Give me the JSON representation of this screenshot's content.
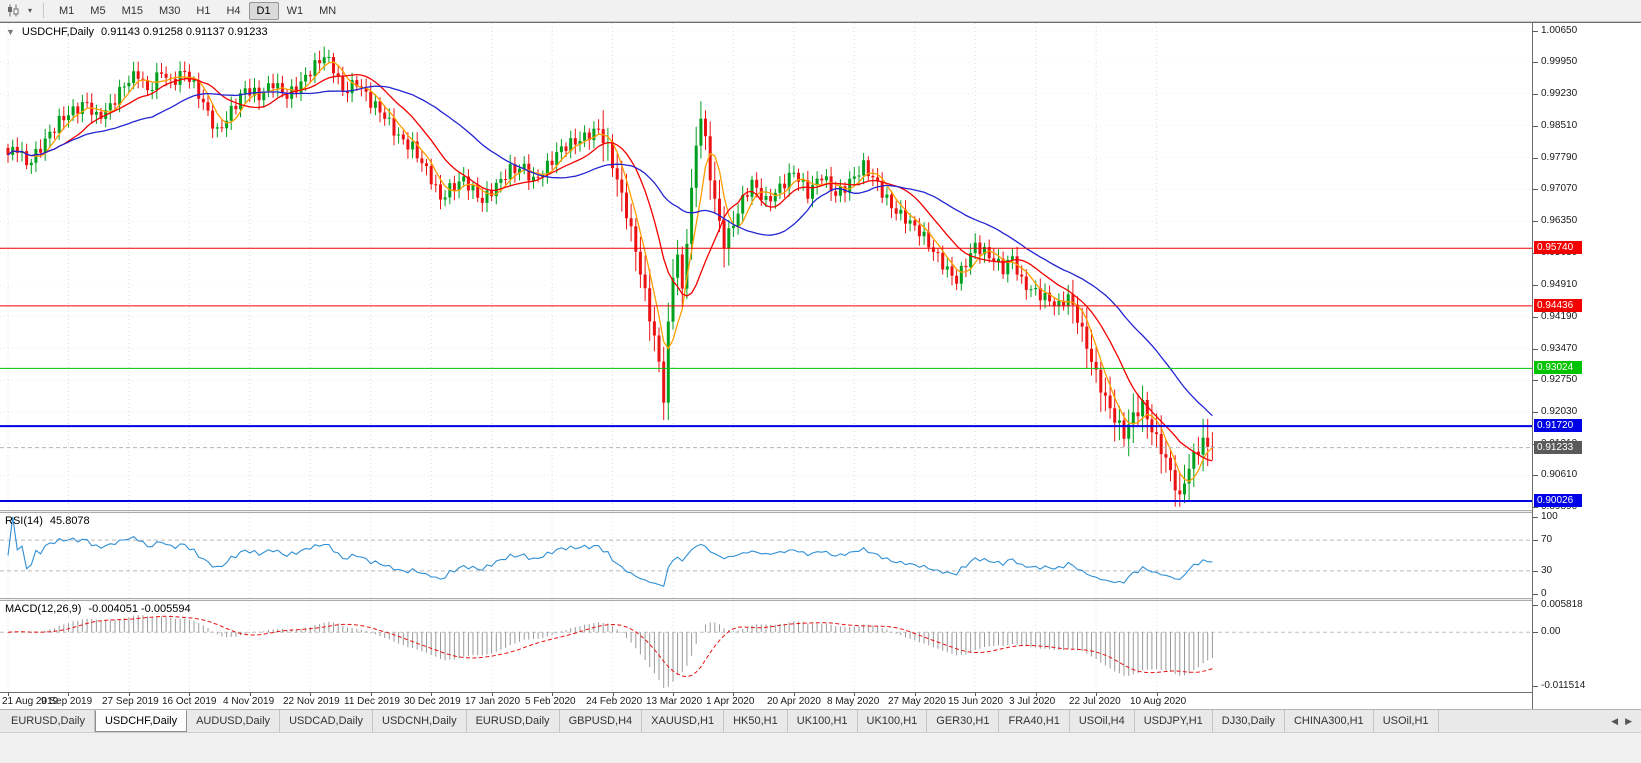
{
  "toolbar": {
    "chart_type_icon": "candlestick-chart-icon",
    "dropdown_icon": "▾",
    "timeframes": [
      "M1",
      "M5",
      "M15",
      "M30",
      "H1",
      "H4",
      "D1",
      "W1",
      "MN"
    ],
    "active_timeframe": "D1"
  },
  "chart_header": {
    "collapse_icon": "▼",
    "symbol": "USDCHF,Daily",
    "ohlc": "0.91143 0.91258 0.91137 0.91233"
  },
  "price_axis": {
    "ticks": [
      "1.00650",
      "0.99950",
      "0.99230",
      "0.98510",
      "0.97790",
      "0.97070",
      "0.96350",
      "0.95630",
      "0.94910",
      "0.94190",
      "0.93470",
      "0.92750",
      "0.92030",
      "0.91310",
      "0.90610",
      "0.89890"
    ]
  },
  "time_axis": {
    "end_arrow_icon": "▶"
  },
  "indicators": {
    "rsi_header": {
      "label": "RSI(14)",
      "value": "45.8078"
    },
    "macd_header": {
      "label": "MACD(12,26,9)",
      "value": "-0.004051 -0.005594"
    }
  },
  "tabs": {
    "items": [
      "EURUSD,Daily",
      "USDCHF,Daily",
      "AUDUSD,Daily",
      "USDCAD,Daily",
      "USDCNH,Daily",
      "EURUSD,Daily",
      "GBPUSD,H4",
      "XAUUSD,H1",
      "HK50,H1",
      "UK100,H1",
      "UK100,H1",
      "GER30,H1",
      "FRA40,H1",
      "USOil,H4",
      "USDJPY,H1",
      "DJ30,Daily",
      "CHINA300,H1",
      "USOil,H1"
    ],
    "active_index": 1,
    "scroll_icons": [
      "◀",
      "▶"
    ]
  },
  "chart_data": {
    "type": "candlestick",
    "symbol": "USDCHF",
    "timeframe": "Daily",
    "title": "USDCHF,Daily",
    "last_ohlc": {
      "open": 0.91143,
      "high": 0.91258,
      "low": 0.91137,
      "close": 0.91233
    },
    "bid": {
      "label": "0.91233",
      "price": 0.91233,
      "badge_color": "#5a5a5a"
    },
    "y_range": [
      0.8989,
      1.0065
    ],
    "bar_count": 260,
    "bars_per_x_label": 13,
    "x_labels": [
      "21 Aug 2019",
      "9 Sep 2019",
      "27 Sep 2019",
      "16 Oct 2019",
      "4 Nov 2019",
      "22 Nov 2019",
      "11 Dec 2019",
      "30 Dec 2019",
      "17 Jan 2020",
      "5 Feb 2020",
      "24 Feb 2020",
      "13 Mar 2020",
      "1 Apr 2020",
      "20 Apr 2020",
      "8 May 2020",
      "27 May 2020",
      "15 Jun 2020",
      "3 Jul 2020",
      "22 Jul 2020",
      "10 Aug 2020"
    ],
    "close_waypoints": [
      [
        0,
        0.9778
      ],
      [
        2,
        0.98
      ],
      [
        4,
        0.9768
      ],
      [
        6,
        0.9793
      ],
      [
        8,
        0.9822
      ],
      [
        11,
        0.9856
      ],
      [
        14,
        0.9878
      ],
      [
        17,
        0.9905
      ],
      [
        19,
        0.9876
      ],
      [
        22,
        0.9896
      ],
      [
        25,
        0.9937
      ],
      [
        28,
        0.9965
      ],
      [
        30,
        0.993
      ],
      [
        33,
        0.9983
      ],
      [
        35,
        0.995
      ],
      [
        38,
        0.9968
      ],
      [
        41,
        0.9918
      ],
      [
        43,
        0.988
      ],
      [
        45,
        0.9842
      ],
      [
        48,
        0.9888
      ],
      [
        51,
        0.9928
      ],
      [
        54,
        0.9912
      ],
      [
        57,
        0.9952
      ],
      [
        60,
        0.9925
      ],
      [
        63,
        0.9945
      ],
      [
        66,
        0.998
      ],
      [
        68,
        1.0005
      ],
      [
        70,
        0.9985
      ],
      [
        72,
        0.9935
      ],
      [
        75,
        0.9952
      ],
      [
        78,
        0.9898
      ],
      [
        81,
        0.9868
      ],
      [
        84,
        0.983
      ],
      [
        87,
        0.9808
      ],
      [
        89,
        0.9768
      ],
      [
        91,
        0.9726
      ],
      [
        93,
        0.9678
      ],
      [
        95,
        0.9706
      ],
      [
        98,
        0.9736
      ],
      [
        100,
        0.9712
      ],
      [
        102,
        0.9682
      ],
      [
        105,
        0.9708
      ],
      [
        108,
        0.9748
      ],
      [
        111,
        0.9762
      ],
      [
        113,
        0.9732
      ],
      [
        116,
        0.9758
      ],
      [
        119,
        0.9792
      ],
      [
        122,
        0.9814
      ],
      [
        125,
        0.9838
      ],
      [
        127,
        0.9848
      ],
      [
        129,
        0.98
      ],
      [
        131,
        0.9722
      ],
      [
        133,
        0.9648
      ],
      [
        135,
        0.9568
      ],
      [
        137,
        0.9476
      ],
      [
        139,
        0.9378
      ],
      [
        140,
        0.932
      ],
      [
        141,
        0.924
      ],
      [
        142,
        0.9396
      ],
      [
        143,
        0.9512
      ],
      [
        144,
        0.9556
      ],
      [
        145,
        0.9466
      ],
      [
        146,
        0.959
      ],
      [
        147,
        0.9696
      ],
      [
        148,
        0.9804
      ],
      [
        149,
        0.9876
      ],
      [
        150,
        0.9818
      ],
      [
        151,
        0.9744
      ],
      [
        152,
        0.969
      ],
      [
        153,
        0.9636
      ],
      [
        154,
        0.959
      ],
      [
        156,
        0.9628
      ],
      [
        158,
        0.9676
      ],
      [
        160,
        0.9716
      ],
      [
        163,
        0.9682
      ],
      [
        166,
        0.9718
      ],
      [
        169,
        0.9746
      ],
      [
        172,
        0.969
      ],
      [
        175,
        0.9738
      ],
      [
        178,
        0.9702
      ],
      [
        181,
        0.9726
      ],
      [
        184,
        0.9754
      ],
      [
        187,
        0.9712
      ],
      [
        190,
        0.9672
      ],
      [
        193,
        0.9648
      ],
      [
        196,
        0.961
      ],
      [
        199,
        0.956
      ],
      [
        202,
        0.9524
      ],
      [
        204,
        0.9508
      ],
      [
        206,
        0.9548
      ],
      [
        208,
        0.9582
      ],
      [
        211,
        0.955
      ],
      [
        214,
        0.9524
      ],
      [
        216,
        0.9556
      ],
      [
        218,
        0.9504
      ],
      [
        221,
        0.9478
      ],
      [
        224,
        0.945
      ],
      [
        226,
        0.9436
      ],
      [
        228,
        0.9464
      ],
      [
        230,
        0.9422
      ],
      [
        232,
        0.936
      ],
      [
        234,
        0.9292
      ],
      [
        236,
        0.923
      ],
      [
        238,
        0.9182
      ],
      [
        240,
        0.9148
      ],
      [
        242,
        0.9196
      ],
      [
        244,
        0.9226
      ],
      [
        246,
        0.917
      ],
      [
        248,
        0.9122
      ],
      [
        250,
        0.9064
      ],
      [
        252,
        0.8998
      ],
      [
        253,
        0.9044
      ],
      [
        255,
        0.9104
      ],
      [
        257,
        0.9142
      ],
      [
        259,
        0.91233
      ]
    ],
    "wick_overrides": {
      "68": {
        "high": 1.003
      },
      "141": {
        "low": 0.9186
      },
      "149": {
        "high": 0.9906
      },
      "252": {
        "low": 0.8988
      }
    },
    "up_color": "#00a01e",
    "down_color": "#ea1212",
    "moving_averages": [
      {
        "period": 5,
        "color": "#ff9d00"
      },
      {
        "period": 13,
        "color": "#f40000"
      },
      {
        "period": 32,
        "color": "#2424d2"
      }
    ],
    "horizontal_lines": [
      {
        "label": "0.95740",
        "price": 0.9574,
        "color": "#f40000",
        "width": 1
      },
      {
        "label": "0.94436",
        "price": 0.94436,
        "color": "#f40000",
        "width": 1
      },
      {
        "label": "0.93024",
        "price": 0.93024,
        "color": "#00c400",
        "width": 1
      },
      {
        "label": "0.91720",
        "price": 0.9172,
        "color": "#0000e6",
        "width": 2
      },
      {
        "label": "0.90026",
        "price": 0.90026,
        "color": "#0000e6",
        "width": 2
      }
    ],
    "rsi": {
      "period": 14,
      "current": 45.8078,
      "line_color": "#2f8fd5",
      "levels": [
        70,
        30
      ],
      "scale_labels": [
        "100",
        "70",
        "30",
        "0"
      ],
      "scale_values": [
        100,
        70,
        30,
        0
      ]
    },
    "macd": {
      "fast": 12,
      "slow": 26,
      "signal": 9,
      "main_current": -0.004051,
      "signal_current": -0.005594,
      "hist_color": "#9a9a9a",
      "signal_color": "#e81212",
      "scale_labels": [
        "0.005818",
        "0.00",
        "-0.011514"
      ],
      "scale_values": [
        0.005818,
        0,
        -0.011514
      ]
    }
  }
}
